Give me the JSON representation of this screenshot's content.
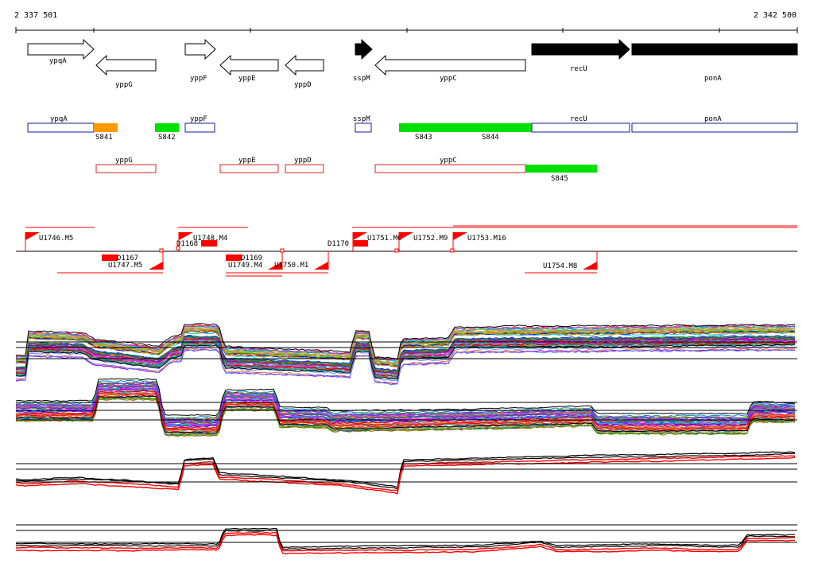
{
  "coordinates": {
    "start": "2 337 501",
    "end": "2 342 500"
  },
  "genes": [
    {
      "label": "ypqA",
      "strand": "+",
      "fill": false
    },
    {
      "label": "yppG",
      "strand": "-",
      "fill": false
    },
    {
      "label": "yppF",
      "strand": "+",
      "fill": false
    },
    {
      "label": "yppE",
      "strand": "-",
      "fill": false
    },
    {
      "label": "yppD",
      "strand": "-",
      "fill": false
    },
    {
      "label": "sspM",
      "strand": "+",
      "fill": true
    },
    {
      "label": "yppC",
      "strand": "-",
      "fill": false
    },
    {
      "label": "recU",
      "strand": "+",
      "fill": true
    },
    {
      "label": "ponA",
      "strand": "+",
      "fill": true
    }
  ],
  "forward_features": [
    {
      "label": "ypqA",
      "kind": "gene"
    },
    {
      "label": "S841",
      "kind": "segment",
      "color": "#ff9900"
    },
    {
      "label": "S842",
      "kind": "segment",
      "color": "#00e000"
    },
    {
      "label": "yppF",
      "kind": "gene"
    },
    {
      "label": "sspM",
      "kind": "gene"
    },
    {
      "label": "S843",
      "kind": "segment",
      "color": "#00e000"
    },
    {
      "label": "S844",
      "kind": "segment",
      "color": "#00e000"
    },
    {
      "label": "recU",
      "kind": "gene"
    },
    {
      "label": "ponA",
      "kind": "gene"
    }
  ],
  "reverse_features": [
    {
      "label": "yppG",
      "kind": "gene"
    },
    {
      "label": "yppE",
      "kind": "gene"
    },
    {
      "label": "yppD",
      "kind": "gene"
    },
    {
      "label": "yppC",
      "kind": "gene"
    },
    {
      "label": "S845",
      "kind": "segment",
      "color": "#00e000"
    }
  ],
  "upper_transcripts": [
    "U1746.M5",
    "U1748.M4",
    "U1751.M6",
    "U1752.M9",
    "U1753.M16"
  ],
  "lower_transcripts": [
    "U1747.M5",
    "U1749.M4",
    "U1750.M1",
    "U1754.M8"
  ],
  "downshifts": [
    "D1167",
    "D1168",
    "D1169",
    "D1170"
  ],
  "colors": {
    "forward_box": "#1a1aa0",
    "reverse_box": "#dd2020",
    "transcript": "#ff0000",
    "segment_green": "#00e000",
    "segment_orange": "#ff9900",
    "profile_black": "#000000",
    "profile_red": "#ff0000"
  }
}
